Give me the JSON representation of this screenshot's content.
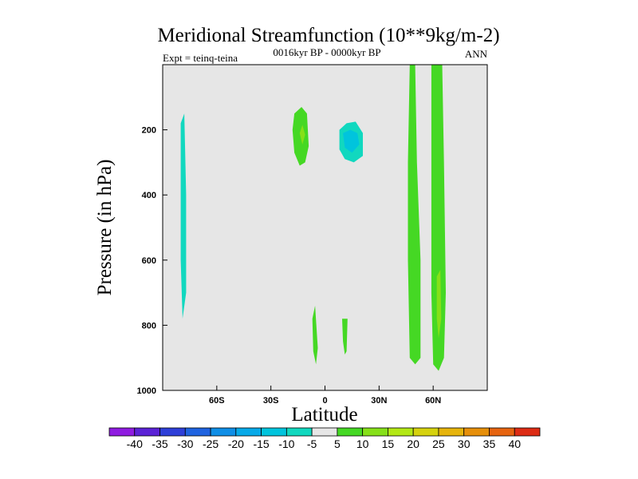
{
  "chart_data": {
    "type": "contour",
    "title": "Meridional Streamfunction (10**9kg/m-2)",
    "subtitle": "0016kyr BP - 0000kyr BP",
    "left_label": "Expt = teinq-teina",
    "right_label": "ANN",
    "xlabel": "Latitude",
    "ylabel": "Pressure (in hPa)",
    "xlim": [
      -90,
      90
    ],
    "ylim": [
      1000,
      0
    ],
    "x_ticks": [
      {
        "value": -60,
        "label": "60S"
      },
      {
        "value": -30,
        "label": "30S"
      },
      {
        "value": 0,
        "label": "0"
      },
      {
        "value": 30,
        "label": "30N"
      },
      {
        "value": 60,
        "label": "60N"
      }
    ],
    "y_ticks": [
      {
        "value": 200,
        "label": "200"
      },
      {
        "value": 400,
        "label": "400"
      },
      {
        "value": 600,
        "label": "600"
      },
      {
        "value": 800,
        "label": "800"
      },
      {
        "value": 1000,
        "label": "1000"
      }
    ],
    "background_color": "#e6e6e6",
    "colorbar": {
      "levels": [
        "-40",
        "-35",
        "-30",
        "-25",
        "-20",
        "-15",
        "-10",
        "-5",
        "5",
        "10",
        "15",
        "20",
        "25",
        "30",
        "35",
        "40"
      ],
      "colors": [
        "#8f1be0",
        "#5b22d6",
        "#2e3fd8",
        "#1f63e0",
        "#0f8ee6",
        "#07a9e8",
        "#00c4dd",
        "#11d8bf",
        "#e6e6e6",
        "#45d824",
        "#86e019",
        "#b3e815",
        "#d6d20e",
        "#e6b40c",
        "#e68f0a",
        "#e66410",
        "#dd2c14"
      ]
    },
    "regions": [
      {
        "name": "sh-polar-negative-cell",
        "value": -5,
        "points": [
          [
            -82,
            0
          ],
          [
            -76,
            0
          ],
          [
            -75,
            200
          ],
          [
            -75,
            600
          ],
          [
            -74,
            900
          ],
          [
            -77,
            920
          ],
          [
            -79,
            900
          ],
          [
            -81,
            700
          ],
          [
            -82,
            300
          ]
        ]
      },
      {
        "name": "sh-polar-negative-inner",
        "value": -10,
        "points": [
          [
            -80,
            180
          ],
          [
            -78,
            150
          ],
          [
            -77,
            400
          ],
          [
            -77,
            700
          ],
          [
            -79,
            780
          ],
          [
            -80,
            600
          ]
        ]
      },
      {
        "name": "tropical-south-positive",
        "value": 5,
        "points": [
          [
            -17,
            150
          ],
          [
            -13,
            130
          ],
          [
            -10,
            150
          ],
          [
            -9,
            250
          ],
          [
            -11,
            300
          ],
          [
            -14,
            310
          ],
          [
            -17,
            270
          ],
          [
            -18,
            200
          ]
        ]
      },
      {
        "name": "tropical-south-positive-core",
        "value": 10,
        "points": [
          [
            -14,
            210
          ],
          [
            -12.5,
            185
          ],
          [
            -11,
            215
          ],
          [
            -12.5,
            245
          ]
        ]
      },
      {
        "name": "tropical-north-negative-cell",
        "value": -5,
        "points": [
          [
            6,
            160
          ],
          [
            12,
            140
          ],
          [
            19,
            130
          ],
          [
            22,
            180
          ],
          [
            24,
            260
          ],
          [
            22,
            310
          ],
          [
            17,
            345
          ],
          [
            12,
            330
          ],
          [
            10,
            290
          ],
          [
            8,
            360
          ],
          [
            6,
            340
          ],
          [
            6,
            250
          ]
        ]
      },
      {
        "name": "tropical-north-negative-inner",
        "value": -10,
        "points": [
          [
            8,
            200
          ],
          [
            12,
            180
          ],
          [
            17,
            175
          ],
          [
            21,
            210
          ],
          [
            21,
            280
          ],
          [
            16,
            300
          ],
          [
            11,
            290
          ],
          [
            8,
            260
          ]
        ]
      },
      {
        "name": "tropical-north-negative-core",
        "value": -15,
        "points": [
          [
            10,
            210
          ],
          [
            14,
            200
          ],
          [
            18,
            210
          ],
          [
            19,
            245
          ],
          [
            15,
            270
          ],
          [
            11,
            255
          ]
        ]
      },
      {
        "name": "mid-south-lower-positive",
        "value": 5,
        "points": [
          [
            -7,
            780
          ],
          [
            -5.5,
            740
          ],
          [
            -4,
            870
          ],
          [
            -5,
            920
          ],
          [
            -6.5,
            880
          ]
        ]
      },
      {
        "name": "equatorial-narrow-negative",
        "value": -5,
        "points": [
          [
            6.6,
            510
          ],
          [
            7.3,
            500
          ],
          [
            7.2,
            560
          ],
          [
            6.7,
            565
          ]
        ]
      },
      {
        "name": "equatorial-narrow-negative-b",
        "value": -5,
        "points": [
          [
            6.7,
            600
          ],
          [
            7.3,
            590
          ],
          [
            7.3,
            640
          ],
          [
            6.8,
            640
          ]
        ]
      },
      {
        "name": "north-tropic-lower-positive",
        "value": 5,
        "points": [
          [
            9.5,
            780
          ],
          [
            12.5,
            780
          ],
          [
            12,
            880
          ],
          [
            11,
            890
          ],
          [
            10,
            850
          ]
        ]
      },
      {
        "name": "north-tropic-lower-negative",
        "value": -5,
        "points": [
          [
            19,
            770
          ],
          [
            20,
            760
          ],
          [
            19.8,
            810
          ],
          [
            19.2,
            805
          ]
        ]
      },
      {
        "name": "nh-midlatitude-positive-band",
        "value": 5,
        "points": [
          [
            47,
            0
          ],
          [
            50,
            0
          ],
          [
            51,
            300
          ],
          [
            53,
            600
          ],
          [
            53,
            900
          ],
          [
            50,
            920
          ],
          [
            47,
            900
          ],
          [
            46,
            600
          ],
          [
            46,
            300
          ]
        ]
      },
      {
        "name": "nh-subpolar-positive-band",
        "value": 5,
        "points": [
          [
            59,
            0
          ],
          [
            65,
            0
          ],
          [
            66,
            300
          ],
          [
            67,
            700
          ],
          [
            66,
            900
          ],
          [
            63,
            940
          ],
          [
            60,
            920
          ],
          [
            59,
            700
          ],
          [
            59,
            300
          ]
        ]
      },
      {
        "name": "nh-subpolar-positive-core",
        "value": 10,
        "points": [
          [
            62,
            650
          ],
          [
            64,
            630
          ],
          [
            64.5,
            780
          ],
          [
            63,
            840
          ],
          [
            62,
            780
          ]
        ]
      }
    ]
  }
}
